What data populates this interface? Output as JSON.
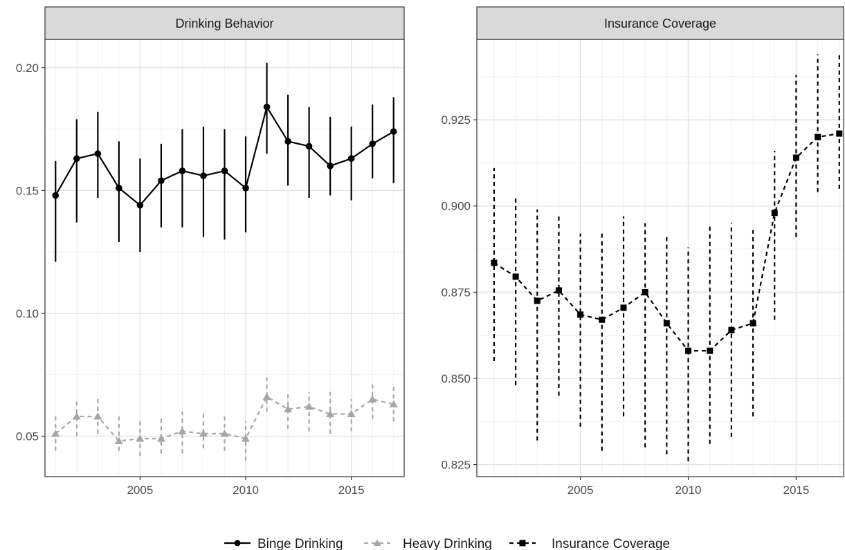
{
  "chart_data": [
    {
      "type": "line",
      "title": "Drinking Behavior",
      "xlabel": "",
      "ylabel": "",
      "xlim": [
        2000.5,
        2017.5
      ],
      "ylim": [
        0.0335,
        0.2115
      ],
      "xticks": [
        2005,
        2010,
        2015
      ],
      "xtick_labels": [
        "2005",
        "2010",
        "2015"
      ],
      "yticks": [
        0.05,
        0.1,
        0.15,
        0.2
      ],
      "ytick_labels": [
        "0.05",
        "0.10",
        "0.15",
        "0.20"
      ],
      "grid": true,
      "x": [
        2001,
        2002,
        2003,
        2004,
        2005,
        2006,
        2007,
        2008,
        2009,
        2010,
        2011,
        2012,
        2013,
        2014,
        2015,
        2016,
        2017
      ],
      "series": [
        {
          "name": "Binge Drinking",
          "color": "#000000",
          "line_style": "solid",
          "marker": "circle",
          "values": [
            0.148,
            0.163,
            0.165,
            0.151,
            0.144,
            0.154,
            0.158,
            0.156,
            0.158,
            0.151,
            0.184,
            0.17,
            0.168,
            0.16,
            0.163,
            0.169,
            0.174
          ],
          "lower": [
            0.121,
            0.137,
            0.147,
            0.129,
            0.125,
            0.135,
            0.135,
            0.131,
            0.13,
            0.133,
            0.165,
            0.152,
            0.147,
            0.148,
            0.146,
            0.155,
            0.153
          ],
          "upper": [
            0.162,
            0.179,
            0.182,
            0.17,
            0.163,
            0.169,
            0.175,
            0.176,
            0.175,
            0.172,
            0.202,
            0.189,
            0.184,
            0.18,
            0.176,
            0.185,
            0.188
          ]
        },
        {
          "name": "Heavy Drinking",
          "color": "#a6a6a6",
          "line_style": "dashed",
          "marker": "triangle",
          "values": [
            0.051,
            0.058,
            0.058,
            0.048,
            0.049,
            0.049,
            0.052,
            0.051,
            0.051,
            0.049,
            0.066,
            0.061,
            0.062,
            0.059,
            0.059,
            0.065,
            0.063
          ],
          "lower": [
            0.044,
            0.05,
            0.051,
            0.044,
            0.042,
            0.043,
            0.043,
            0.045,
            0.044,
            0.04,
            0.06,
            0.053,
            0.052,
            0.051,
            0.052,
            0.057,
            0.056
          ],
          "upper": [
            0.058,
            0.065,
            0.066,
            0.058,
            0.057,
            0.057,
            0.06,
            0.059,
            0.058,
            0.056,
            0.074,
            0.067,
            0.068,
            0.068,
            0.065,
            0.071,
            0.07
          ]
        }
      ]
    },
    {
      "type": "line",
      "title": "Insurance Coverage",
      "xlabel": "",
      "ylabel": "",
      "xlim": [
        2000.2,
        2017.2
      ],
      "ylim": [
        0.8215,
        0.9483
      ],
      "xticks": [
        2005,
        2010,
        2015
      ],
      "xtick_labels": [
        "2005",
        "2010",
        "2015"
      ],
      "yticks": [
        0.825,
        0.85,
        0.875,
        0.9,
        0.925
      ],
      "ytick_labels": [
        "0.825",
        "0.850",
        "0.875",
        "0.900",
        "0.925"
      ],
      "grid": true,
      "x": [
        2001,
        2002,
        2003,
        2004,
        2005,
        2006,
        2007,
        2008,
        2009,
        2010,
        2011,
        2012,
        2013,
        2014,
        2015,
        2016,
        2017
      ],
      "series": [
        {
          "name": "Insurance Coverage",
          "color": "#000000",
          "line_style": "dashed",
          "marker": "square",
          "values": [
            0.8835,
            0.8795,
            0.8725,
            0.8755,
            0.8685,
            0.867,
            0.8705,
            0.875,
            0.866,
            0.858,
            0.858,
            0.864,
            0.866,
            0.898,
            0.914,
            0.92,
            0.921
          ],
          "lower": [
            0.855,
            0.848,
            0.832,
            0.845,
            0.836,
            0.829,
            0.839,
            0.83,
            0.828,
            0.826,
            0.831,
            0.833,
            0.839,
            0.867,
            0.891,
            0.904,
            0.905
          ],
          "upper": [
            0.911,
            0.903,
            0.899,
            0.897,
            0.892,
            0.892,
            0.897,
            0.895,
            0.892,
            0.888,
            0.894,
            0.895,
            0.893,
            0.916,
            0.938,
            0.944,
            0.944
          ]
        }
      ]
    }
  ],
  "legend": {
    "position": "bottom",
    "items": [
      {
        "label": "Binge Drinking",
        "color": "#000000",
        "line_style": "solid",
        "marker": "circle"
      },
      {
        "label": "Heavy Drinking",
        "color": "#a6a6a6",
        "line_style": "dashed",
        "marker": "triangle"
      },
      {
        "label": "Insurance Coverage",
        "color": "#000000",
        "line_style": "dashed",
        "marker": "square"
      }
    ]
  }
}
